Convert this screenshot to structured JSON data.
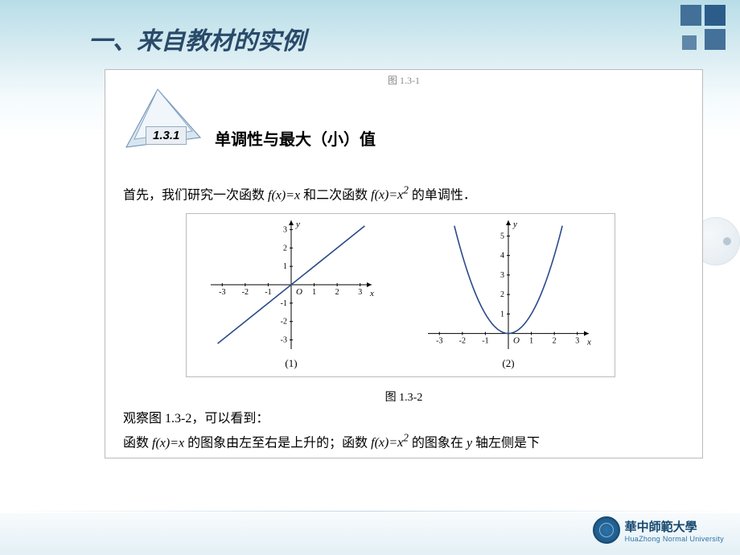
{
  "heading": "一、来自教材的实例",
  "top_cut_label": "图 1.3-1",
  "section": {
    "number": "1.3.1",
    "title": "单调性与最大（小）值"
  },
  "para1_before_f1": "首先，我们研究一次函数 ",
  "para1_fx_eq_x": "f(x)=x",
  "para1_mid": " 和二次函数 ",
  "para1_fx_eq_x2_f": "f(x)=x",
  "para1_fx_eq_x2_exp": "2",
  "para1_after": " 的单调性．",
  "chart_caption": "图 1.3-2",
  "para2": "观察图 1.3-2，可以看到：",
  "para3_a": "函数 ",
  "para3_fx_eq_x": "f(x)=x",
  "para3_b": " 的图象由左至右是上升的；函数 ",
  "para3_fx_eq_x2_f": "f(x)=x",
  "para3_fx_eq_x2_exp": "2",
  "para3_c": " 的图象在 ",
  "para3_y": "y",
  "para3_d": " 轴左侧是下",
  "chart1": {
    "type": "line",
    "sublabel": "(1)",
    "xlim": [
      -3.5,
      3.5
    ],
    "ylim": [
      -3.5,
      3.5
    ],
    "xticks": [
      -3,
      -2,
      -1,
      1,
      2,
      3
    ],
    "yticks_pos": [
      1,
      2,
      3
    ],
    "yticks_neg": [
      -1,
      -2,
      -3
    ],
    "xlabel": "x",
    "ylabel": "y",
    "origin_label": "O",
    "line_color": "#2a4a8a",
    "line_width": 1.6,
    "points": {
      "x1": -3.2,
      "y1": -3.2,
      "x2": 3.2,
      "y2": 3.2
    },
    "label_fontsize": 11,
    "tick_fontsize": 10
  },
  "chart2": {
    "type": "line",
    "sublabel": "(2)",
    "xlim": [
      -3.5,
      3.5
    ],
    "ylim": [
      -0.8,
      5.8
    ],
    "xticks": [
      -3,
      -2,
      -1,
      1,
      2,
      3
    ],
    "yticks_pos": [
      1,
      2,
      3,
      4,
      5
    ],
    "xlabel": "x",
    "ylabel": "y",
    "origin_label": "O",
    "line_color": "#2a4a8a",
    "line_width": 1.6,
    "parabola_xrange": [
      -2.35,
      2.35
    ],
    "label_fontsize": 11,
    "tick_fontsize": 10
  },
  "colors": {
    "decor_sq": "#2c5c8a",
    "heading_text": "#2a4a6a",
    "box_border": "#bbbbbb",
    "footer_primary": "#184a70"
  },
  "footer": {
    "cn": "華中師範大學",
    "en": "HuaZhong Normal University"
  }
}
